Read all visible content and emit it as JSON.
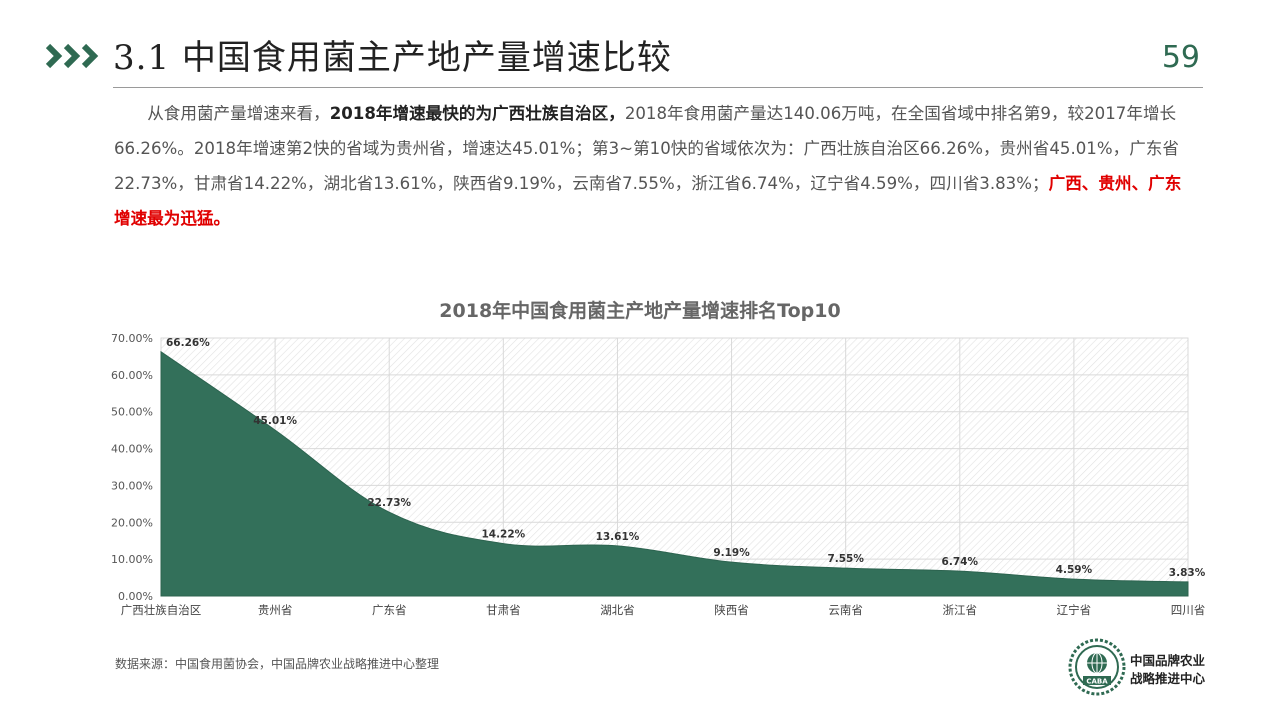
{
  "header": {
    "title": "3.1  中国食用菌主产地产量增速比较",
    "page_number": "59"
  },
  "paragraph": {
    "lead": "从食用菌产量增速来看，",
    "bold": "2018年增速最快的为广西壮族自治区，",
    "body": "2018年食用菌产量达140.06万吨，在全国省域中排名第9，较2017年增长66.26%。2018年增速第2快的省域为贵州省，增速达45.01%；第3~第10快的省域依次为：广西壮族自治区66.26%，贵州省45.01%，广东省22.73%，甘肃省14.22%，湖北省13.61%，陕西省9.19%，云南省7.55%，浙江省6.74%，辽宁省4.59%，四川省3.83%；",
    "highlight": "广西、贵州、广东增速最为迅猛。"
  },
  "colors": {
    "area_fill": "#33705a",
    "accent": "#2f6a52",
    "highlight_red": "#e00000"
  },
  "chart_data": {
    "type": "area",
    "title": "2018年中国食用菌主产地产量增速排名Top10",
    "categories": [
      "广西壮族自治区",
      "贵州省",
      "广东省",
      "甘肃省",
      "湖北省",
      "陕西省",
      "云南省",
      "浙江省",
      "辽宁省",
      "四川省"
    ],
    "values": [
      66.26,
      45.01,
      22.73,
      14.22,
      13.61,
      9.19,
      7.55,
      6.74,
      4.59,
      3.83
    ],
    "data_labels": [
      "66.26%",
      "45.01%",
      "22.73%",
      "14.22%",
      "13.61%",
      "9.19%",
      "7.55%",
      "6.74%",
      "4.59%",
      "3.83%"
    ],
    "ylim": [
      0,
      70
    ],
    "y_ticks": [
      "0.00%",
      "10.00%",
      "20.00%",
      "30.00%",
      "40.00%",
      "50.00%",
      "60.00%",
      "70.00%"
    ],
    "grid": true,
    "legend": "none"
  },
  "footer": {
    "source": "数据来源：中国食用菌协会，中国品牌农业战略推进中心整理",
    "org_line1": "中国品牌农业",
    "org_line2": "战略推进中心",
    "logo_text": "CABA"
  }
}
